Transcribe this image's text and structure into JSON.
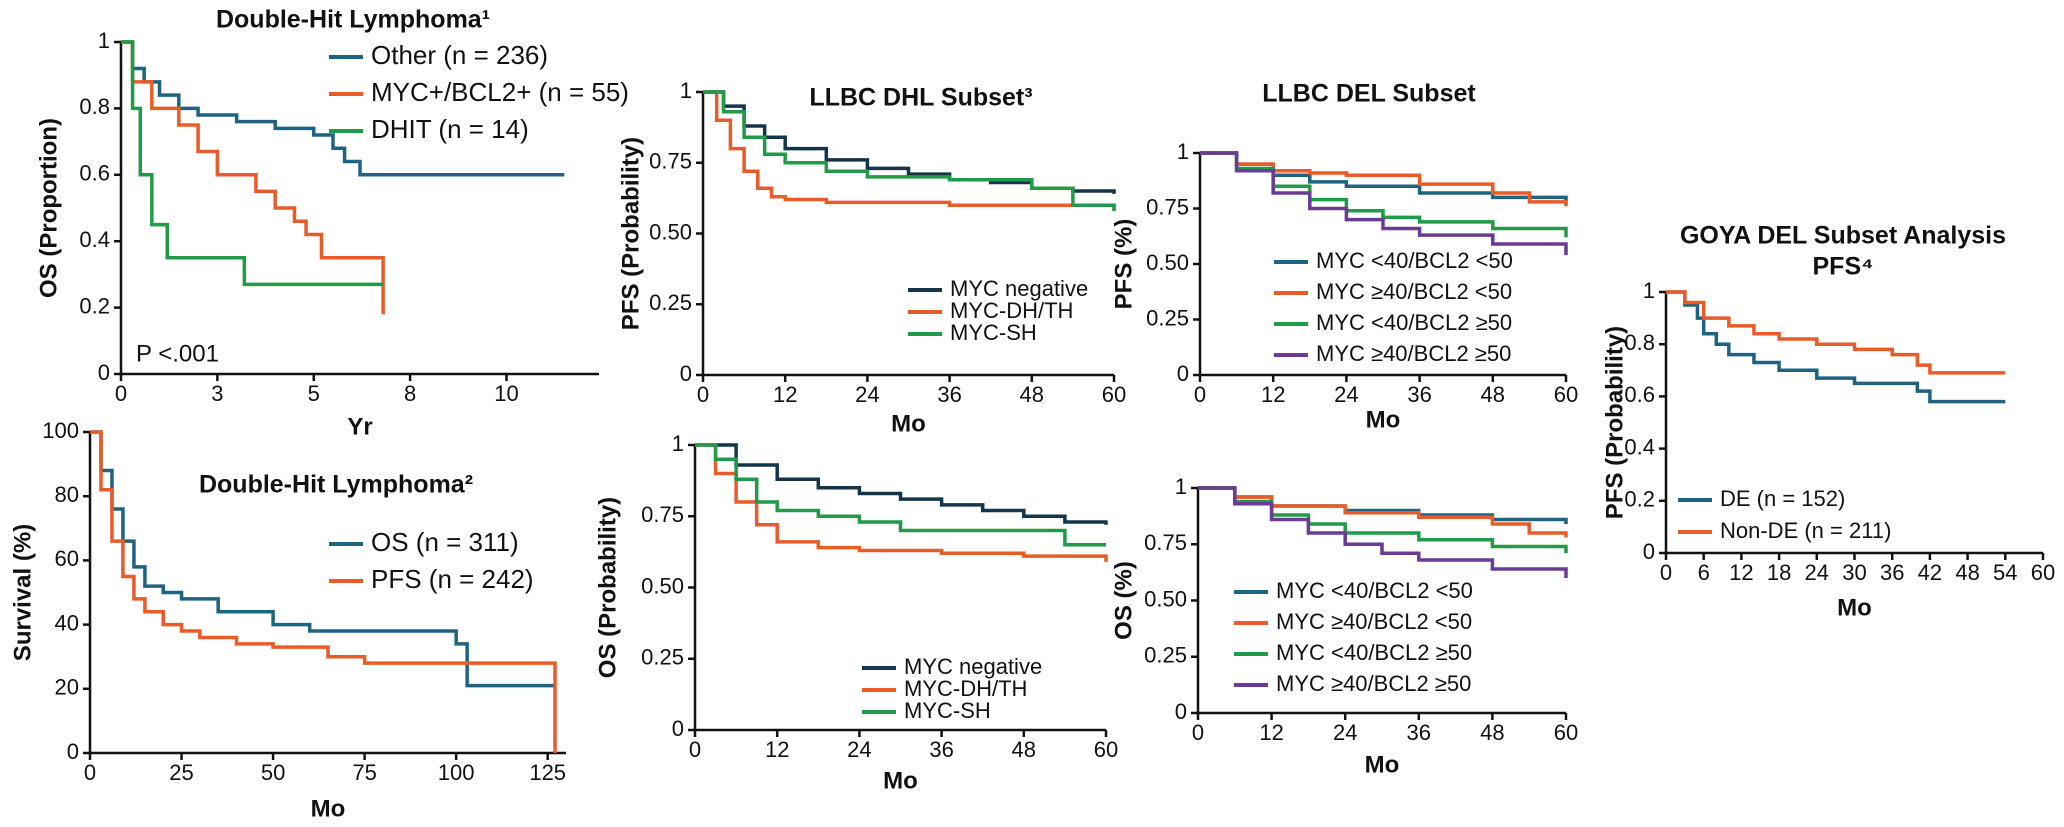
{
  "chart_data": [
    {
      "type": "step",
      "title": "Double-Hit Lymphoma¹",
      "x_label": "Yr",
      "y_label": "OS (Proportion)",
      "annotation": "P <.001",
      "xlim": [
        0,
        12.4
      ],
      "xticks": [
        0,
        {
          "value": 2.5,
          "label": "3"
        },
        5,
        {
          "value": 7.5,
          "label": "8"
        },
        10
      ],
      "ylim": [
        0,
        1
      ],
      "yticks": [
        0,
        0.2,
        0.4,
        0.6,
        0.8,
        1
      ],
      "series": [
        {
          "name": "Other (n = 236)",
          "color": "#1e6482",
          "x": [
            0,
            0.3,
            0.6,
            1,
            1.5,
            2,
            3,
            4,
            5,
            5.5,
            5.8,
            6.2,
            11.5
          ],
          "values": [
            1,
            0.92,
            0.88,
            0.84,
            0.8,
            0.78,
            0.76,
            0.74,
            0.72,
            0.68,
            0.64,
            0.6,
            0.6
          ]
        },
        {
          "name": "MYC+/BCL2+ (n = 55)",
          "color": "#ea5b2a",
          "x": [
            0,
            0.3,
            0.8,
            1.5,
            2,
            2.5,
            3,
            3.5,
            4,
            4.5,
            4.8,
            5.2,
            6.8,
            6.8
          ],
          "values": [
            1,
            0.88,
            0.8,
            0.75,
            0.67,
            0.6,
            0.6,
            0.55,
            0.5,
            0.46,
            0.42,
            0.35,
            0.35,
            0.18
          ]
        },
        {
          "name": "DHIT (n = 14)",
          "color": "#1f9b4a",
          "x": [
            0,
            0.3,
            0.5,
            0.8,
            1.2,
            3.2,
            6.8
          ],
          "values": [
            1,
            0.8,
            0.6,
            0.45,
            0.35,
            0.27,
            0.27
          ]
        }
      ]
    },
    {
      "type": "step",
      "title": "Double-Hit Lymphoma²",
      "x_label": "Mo",
      "y_label": "Survival (%)",
      "xlim": [
        0,
        130
      ],
      "xticks": [
        0,
        25,
        50,
        75,
        100,
        125
      ],
      "ylim": [
        0,
        100
      ],
      "yticks": [
        0,
        20,
        40,
        60,
        80,
        100
      ],
      "series": [
        {
          "name": "OS (n = 311)",
          "color": "#1e6482",
          "x": [
            0,
            3,
            6,
            9,
            12,
            15,
            20,
            25,
            35,
            50,
            60,
            70,
            95,
            100,
            103,
            110,
            127
          ],
          "values": [
            100,
            88,
            76,
            66,
            58,
            52,
            50,
            48,
            44,
            40,
            38,
            38,
            38,
            34,
            21,
            21,
            21
          ]
        },
        {
          "name": "PFS (n = 242)",
          "color": "#ea5b2a",
          "x": [
            0,
            3,
            6,
            9,
            12,
            15,
            20,
            25,
            30,
            40,
            50,
            65,
            75,
            100,
            110,
            127,
            127
          ],
          "values": [
            100,
            82,
            66,
            55,
            48,
            44,
            40,
            38,
            36,
            34,
            33,
            30,
            28,
            28,
            28,
            28,
            0
          ]
        }
      ]
    },
    {
      "type": "step",
      "title": "LLBC DHL Subset³",
      "x_label": "Mo",
      "y_label": "PFS (Probability)",
      "xlim": [
        0,
        60
      ],
      "xticks": [
        0,
        12,
        24,
        36,
        48,
        60
      ],
      "ylim": [
        0,
        1
      ],
      "yticks": [
        0,
        0.25,
        {
          "value": 0.5,
          "label": "0.50"
        },
        0.75,
        1
      ],
      "series": [
        {
          "name": "MYC negative",
          "color": "#15354a",
          "x": [
            0,
            3,
            6,
            9,
            12,
            18,
            24,
            30,
            36,
            42,
            48,
            54,
            60
          ],
          "values": [
            1,
            0.95,
            0.88,
            0.84,
            0.8,
            0.76,
            0.73,
            0.71,
            0.69,
            0.68,
            0.66,
            0.65,
            0.64
          ]
        },
        {
          "name": "MYC-DH/TH",
          "color": "#ea5b2a",
          "x": [
            0,
            2,
            4,
            6,
            8,
            10,
            12,
            18,
            24,
            36,
            48,
            60
          ],
          "values": [
            1,
            0.9,
            0.8,
            0.72,
            0.66,
            0.63,
            0.62,
            0.61,
            0.61,
            0.6,
            0.6,
            0.58
          ]
        },
        {
          "name": "MYC-SH",
          "color": "#1f9b4a",
          "x": [
            0,
            3,
            6,
            9,
            12,
            18,
            24,
            36,
            48,
            54,
            60
          ],
          "values": [
            1,
            0.93,
            0.84,
            0.78,
            0.75,
            0.72,
            0.7,
            0.69,
            0.66,
            0.6,
            0.58
          ]
        }
      ]
    },
    {
      "type": "step",
      "x_label": "Mo",
      "y_label": "OS (Probability)",
      "xlim": [
        0,
        60
      ],
      "xticks": [
        0,
        12,
        24,
        36,
        48,
        60
      ],
      "ylim": [
        0,
        1
      ],
      "yticks": [
        0,
        0.25,
        {
          "value": 0.5,
          "label": "0.50"
        },
        0.75,
        1
      ],
      "series": [
        {
          "name": "MYC negative",
          "color": "#15354a",
          "x": [
            0,
            6,
            12,
            18,
            24,
            30,
            36,
            42,
            48,
            54,
            60
          ],
          "values": [
            1,
            0.93,
            0.88,
            0.85,
            0.83,
            0.81,
            0.79,
            0.77,
            0.75,
            0.73,
            0.72
          ]
        },
        {
          "name": "MYC-DH/TH",
          "color": "#ea5b2a",
          "x": [
            0,
            3,
            6,
            9,
            12,
            18,
            24,
            36,
            48,
            60
          ],
          "values": [
            1,
            0.9,
            0.8,
            0.72,
            0.66,
            0.64,
            0.63,
            0.62,
            0.61,
            0.59
          ]
        },
        {
          "name": "MYC-SH",
          "color": "#1f9b4a",
          "x": [
            0,
            3,
            6,
            9,
            12,
            18,
            24,
            30,
            36,
            48,
            54,
            60
          ],
          "values": [
            1,
            0.95,
            0.88,
            0.8,
            0.77,
            0.75,
            0.73,
            0.7,
            0.7,
            0.7,
            0.65,
            0.65
          ]
        }
      ]
    },
    {
      "type": "step",
      "title": "LLBC DEL Subset",
      "x_label": "Mo",
      "y_label": "PFS (%)",
      "xlim": [
        0,
        60
      ],
      "xticks": [
        0,
        12,
        24,
        36,
        48,
        60
      ],
      "ylim": [
        0,
        1
      ],
      "yticks": [
        0,
        0.25,
        {
          "value": 0.5,
          "label": "0.50"
        },
        0.75,
        1
      ],
      "series": [
        {
          "name": "MYC <40/BCL2 <50",
          "color": "#1e6482",
          "x": [
            0,
            6,
            12,
            18,
            24,
            36,
            48,
            60
          ],
          "values": [
            1,
            0.95,
            0.9,
            0.87,
            0.85,
            0.82,
            0.8,
            0.77
          ]
        },
        {
          "name": "MYC ≥40/BCL2 <50",
          "color": "#ea5b2a",
          "x": [
            0,
            6,
            12,
            18,
            24,
            36,
            48,
            54,
            60
          ],
          "values": [
            1,
            0.95,
            0.92,
            0.91,
            0.9,
            0.86,
            0.82,
            0.78,
            0.76
          ]
        },
        {
          "name": "MYC <40/BCL2 ≥50",
          "color": "#1f9b4a",
          "x": [
            0,
            6,
            12,
            18,
            24,
            30,
            36,
            48,
            60
          ],
          "values": [
            1,
            0.93,
            0.85,
            0.79,
            0.74,
            0.71,
            0.69,
            0.66,
            0.62
          ]
        },
        {
          "name": "MYC ≥40/BCL2 ≥50",
          "color": "#6b3a96",
          "x": [
            0,
            6,
            12,
            18,
            24,
            30,
            36,
            48,
            60
          ],
          "values": [
            1,
            0.92,
            0.82,
            0.75,
            0.7,
            0.66,
            0.63,
            0.59,
            0.54
          ]
        }
      ]
    },
    {
      "type": "step",
      "x_label": "Mo",
      "y_label": "OS (%)",
      "xlim": [
        0,
        60
      ],
      "xticks": [
        0,
        12,
        24,
        36,
        48,
        60
      ],
      "ylim": [
        0,
        1
      ],
      "yticks": [
        0,
        0.25,
        {
          "value": 0.5,
          "label": "0.50"
        },
        0.75,
        1
      ],
      "series": [
        {
          "name": "MYC <40/BCL2 <50",
          "color": "#1e6482",
          "x": [
            0,
            6,
            12,
            24,
            36,
            48,
            60
          ],
          "values": [
            1,
            0.96,
            0.92,
            0.9,
            0.88,
            0.86,
            0.84
          ]
        },
        {
          "name": "MYC ≥40/BCL2 <50",
          "color": "#ea5b2a",
          "x": [
            0,
            6,
            12,
            24,
            36,
            48,
            54,
            60
          ],
          "values": [
            1,
            0.96,
            0.92,
            0.89,
            0.87,
            0.84,
            0.8,
            0.78
          ]
        },
        {
          "name": "MYC <40/BCL2 ≥50",
          "color": "#1f9b4a",
          "x": [
            0,
            6,
            12,
            18,
            24,
            36,
            48,
            60
          ],
          "values": [
            1,
            0.94,
            0.88,
            0.84,
            0.8,
            0.77,
            0.74,
            0.71
          ]
        },
        {
          "name": "MYC ≥40/BCL2 ≥50",
          "color": "#6b3a96",
          "x": [
            0,
            6,
            12,
            18,
            24,
            30,
            36,
            48,
            60
          ],
          "values": [
            1,
            0.93,
            0.86,
            0.8,
            0.75,
            0.71,
            0.68,
            0.64,
            0.6
          ]
        }
      ]
    },
    {
      "type": "step",
      "title": [
        "GOYA DEL Subset Analysis",
        "PFS⁴"
      ],
      "x_label": "Mo",
      "y_label": "PFS (Probability)",
      "xlim": [
        0,
        60
      ],
      "xticks": [
        0,
        6,
        12,
        18,
        24,
        30,
        36,
        42,
        48,
        54,
        60
      ],
      "ylim": [
        0,
        1
      ],
      "yticks": [
        0,
        0.2,
        0.4,
        0.6,
        0.8,
        1
      ],
      "series": [
        {
          "name": "DE (n = 152)",
          "color": "#1e6482",
          "x": [
            0,
            3,
            5,
            6,
            8,
            10,
            14,
            18,
            24,
            30,
            36,
            40,
            42,
            54
          ],
          "values": [
            1,
            0.95,
            0.9,
            0.84,
            0.8,
            0.76,
            0.73,
            0.7,
            0.67,
            0.65,
            0.65,
            0.62,
            0.58,
            0.58
          ]
        },
        {
          "name": "Non-DE (n = 211)",
          "color": "#ea5b2a",
          "x": [
            0,
            3,
            6,
            10,
            14,
            18,
            24,
            30,
            36,
            40,
            42,
            54
          ],
          "values": [
            1,
            0.96,
            0.9,
            0.87,
            0.84,
            0.82,
            0.8,
            0.78,
            0.76,
            0.72,
            0.69,
            0.69
          ]
        }
      ]
    }
  ]
}
